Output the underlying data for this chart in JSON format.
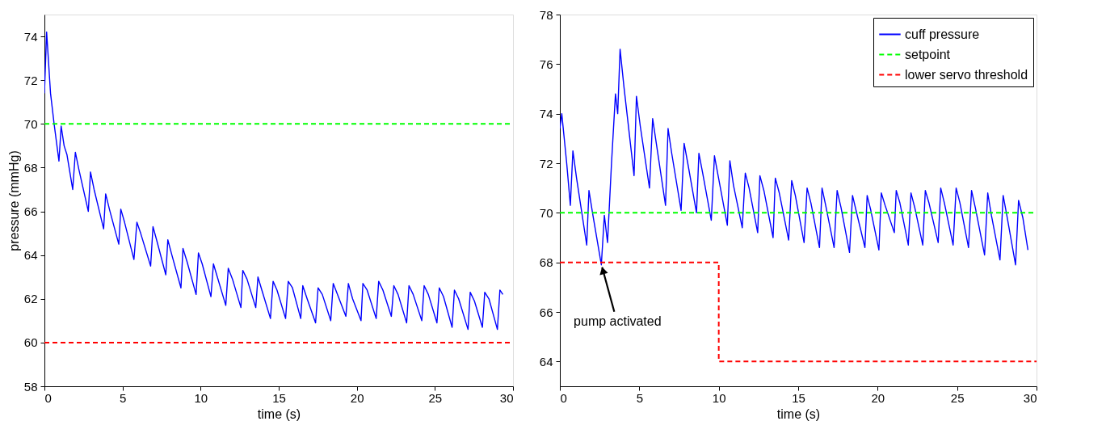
{
  "chart_data": [
    {
      "type": "line",
      "xlabel": "time (s)",
      "ylabel": "pressure (mmHg)",
      "xlim": [
        0,
        30
      ],
      "ylim": [
        58,
        75
      ],
      "xticks": [
        0,
        5,
        10,
        15,
        20,
        25,
        30
      ],
      "yticks": [
        58,
        60,
        62,
        64,
        66,
        68,
        70,
        72,
        74
      ],
      "grid": false,
      "legend": false,
      "series": [
        {
          "type": "line",
          "color": "#0000ff",
          "line_style": "solid",
          "x": [
            0,
            0.14,
            0.39,
            0.62,
            0.93,
            1.07,
            1.26,
            1.44,
            1.81,
            1.98,
            2.21,
            2.81,
            2.95,
            3.18,
            3.79,
            3.92,
            4.16,
            4.76,
            4.89,
            5.13,
            5.73,
            5.92,
            6.16,
            6.8,
            6.95,
            7.18,
            7.77,
            7.9,
            8.16,
            8.74,
            8.87,
            9.13,
            9.71,
            9.86,
            10.1,
            10.66,
            10.82,
            11.07,
            11.61,
            11.77,
            12.04,
            12.58,
            12.7,
            12.97,
            13.53,
            13.67,
            13.92,
            14.47,
            14.64,
            14.89,
            15.44,
            15.61,
            15.88,
            16.41,
            16.54,
            16.82,
            17.36,
            17.52,
            17.79,
            18.33,
            18.49,
            18.76,
            19.3,
            19.46,
            19.73,
            20.27,
            20.39,
            20.66,
            21.24,
            21.4,
            21.67,
            22.21,
            22.37,
            22.64,
            23.19,
            23.34,
            23.61,
            24.16,
            24.31,
            24.58,
            25.13,
            25.28,
            25.55,
            26.1,
            26.25,
            26.52,
            27.12,
            27.26,
            27.53,
            28.04,
            28.19,
            28.46,
            29.0,
            29.16,
            29.35
          ],
          "values": [
            71.4,
            74.2,
            71.4,
            70.0,
            68.3,
            69.9,
            69.0,
            68.6,
            67.0,
            68.7,
            67.9,
            66.0,
            67.8,
            67.0,
            65.2,
            66.8,
            66.1,
            64.5,
            66.1,
            65.5,
            63.8,
            65.5,
            65.0,
            63.5,
            65.3,
            64.7,
            63.1,
            64.7,
            64.0,
            62.5,
            64.3,
            63.7,
            62.2,
            64.1,
            63.6,
            62.1,
            63.6,
            63.0,
            61.7,
            63.4,
            62.9,
            61.6,
            63.3,
            62.9,
            61.6,
            63.0,
            62.4,
            61.1,
            62.8,
            62.4,
            61.1,
            62.8,
            62.5,
            61.1,
            62.6,
            62.0,
            60.9,
            62.5,
            62.2,
            61.0,
            62.7,
            62.2,
            61.2,
            62.7,
            62.0,
            61.0,
            62.7,
            62.4,
            61.1,
            62.8,
            62.4,
            61.2,
            62.6,
            62.2,
            60.9,
            62.6,
            62.2,
            61.0,
            62.6,
            62.2,
            60.9,
            62.5,
            62.1,
            60.7,
            62.4,
            62.0,
            60.6,
            62.3,
            61.9,
            60.7,
            62.3,
            62.0,
            60.6,
            62.4,
            62.2
          ]
        },
        {
          "type": "line",
          "color": "#00ff00",
          "line_style": "dashed",
          "x": [
            0,
            30
          ],
          "values": [
            70,
            70
          ]
        },
        {
          "type": "line",
          "color": "#ff0000",
          "line_style": "dashed",
          "x": [
            0,
            30
          ],
          "values": [
            60,
            60
          ]
        }
      ]
    },
    {
      "type": "line",
      "xlabel": "time (s)",
      "xlim": [
        0,
        30
      ],
      "ylim": [
        63,
        78
      ],
      "xticks": [
        0,
        5,
        10,
        15,
        20,
        25,
        30
      ],
      "yticks": [
        64,
        66,
        68,
        70,
        72,
        74,
        76,
        78
      ],
      "grid": false,
      "legend": "top right",
      "annotations": [
        {
          "text": "pump activated",
          "x": 2.61,
          "y": 67.9
        }
      ],
      "series": [
        {
          "type": "line",
          "name": "cuff pressure",
          "color": "#0000ff",
          "line_style": "solid",
          "x": [
            0,
            0.12,
            0.43,
            0.66,
            0.82,
            1.05,
            1.69,
            1.83,
            2.08,
            2.61,
            2.8,
            3.0,
            3.25,
            3.5,
            3.64,
            3.79,
            4.03,
            4.67,
            4.82,
            5.06,
            5.64,
            5.84,
            6.07,
            6.65,
            6.81,
            7.04,
            7.63,
            7.82,
            8.05,
            8.6,
            8.75,
            8.99,
            9.53,
            9.73,
            9.96,
            10.54,
            10.7,
            10.93,
            11.48,
            11.67,
            11.91,
            12.45,
            12.59,
            12.84,
            13.42,
            13.56,
            13.81,
            14.4,
            14.59,
            14.82,
            15.37,
            15.56,
            15.8,
            16.34,
            16.5,
            16.73,
            17.26,
            17.45,
            17.7,
            18.23,
            18.42,
            18.64,
            19.2,
            19.34,
            19.57,
            20.08,
            20.23,
            20.47,
            21.05,
            21.17,
            21.4,
            21.93,
            22.1,
            22.34,
            22.84,
            23.0,
            23.23,
            23.81,
            23.97,
            24.2,
            24.75,
            24.94,
            25.18,
            25.72,
            25.91,
            26.15,
            26.73,
            26.93,
            27.16,
            27.7,
            27.9,
            28.13,
            28.68,
            28.87,
            29.14,
            29.46
          ],
          "values": [
            73.4,
            74.0,
            72.0,
            70.3,
            72.5,
            71.4,
            68.7,
            70.9,
            69.9,
            67.9,
            69.9,
            68.8,
            72.0,
            74.8,
            74.0,
            76.6,
            75.1,
            71.5,
            74.7,
            73.5,
            71.0,
            73.8,
            72.8,
            70.3,
            73.4,
            72.4,
            70.1,
            72.8,
            72.0,
            70.0,
            72.4,
            71.6,
            69.7,
            72.3,
            71.5,
            69.5,
            72.1,
            71.1,
            69.4,
            71.6,
            71.0,
            69.2,
            71.5,
            70.9,
            69.0,
            71.4,
            70.8,
            68.9,
            71.3,
            70.7,
            68.8,
            71.0,
            70.4,
            68.6,
            71.0,
            70.3,
            68.6,
            70.9,
            70.2,
            68.4,
            70.7,
            70.1,
            68.6,
            70.7,
            70.1,
            68.5,
            70.8,
            70.3,
            69.2,
            70.9,
            70.4,
            68.7,
            70.8,
            70.2,
            68.7,
            70.9,
            70.4,
            68.8,
            71.0,
            70.4,
            68.7,
            71.0,
            70.4,
            68.6,
            70.9,
            70.2,
            68.3,
            70.8,
            69.9,
            68.1,
            70.7,
            69.9,
            67.9,
            70.5,
            69.8,
            68.5
          ]
        },
        {
          "type": "line",
          "name": "setpoint",
          "color": "#00ff00",
          "line_style": "dashed",
          "x": [
            0,
            30
          ],
          "values": [
            70,
            70
          ]
        },
        {
          "type": "step",
          "name": "lower servo threshold",
          "color": "#ff0000",
          "line_style": "dashed",
          "x": [
            0,
            10,
            30
          ],
          "values": [
            68,
            64,
            64
          ]
        }
      ]
    }
  ]
}
